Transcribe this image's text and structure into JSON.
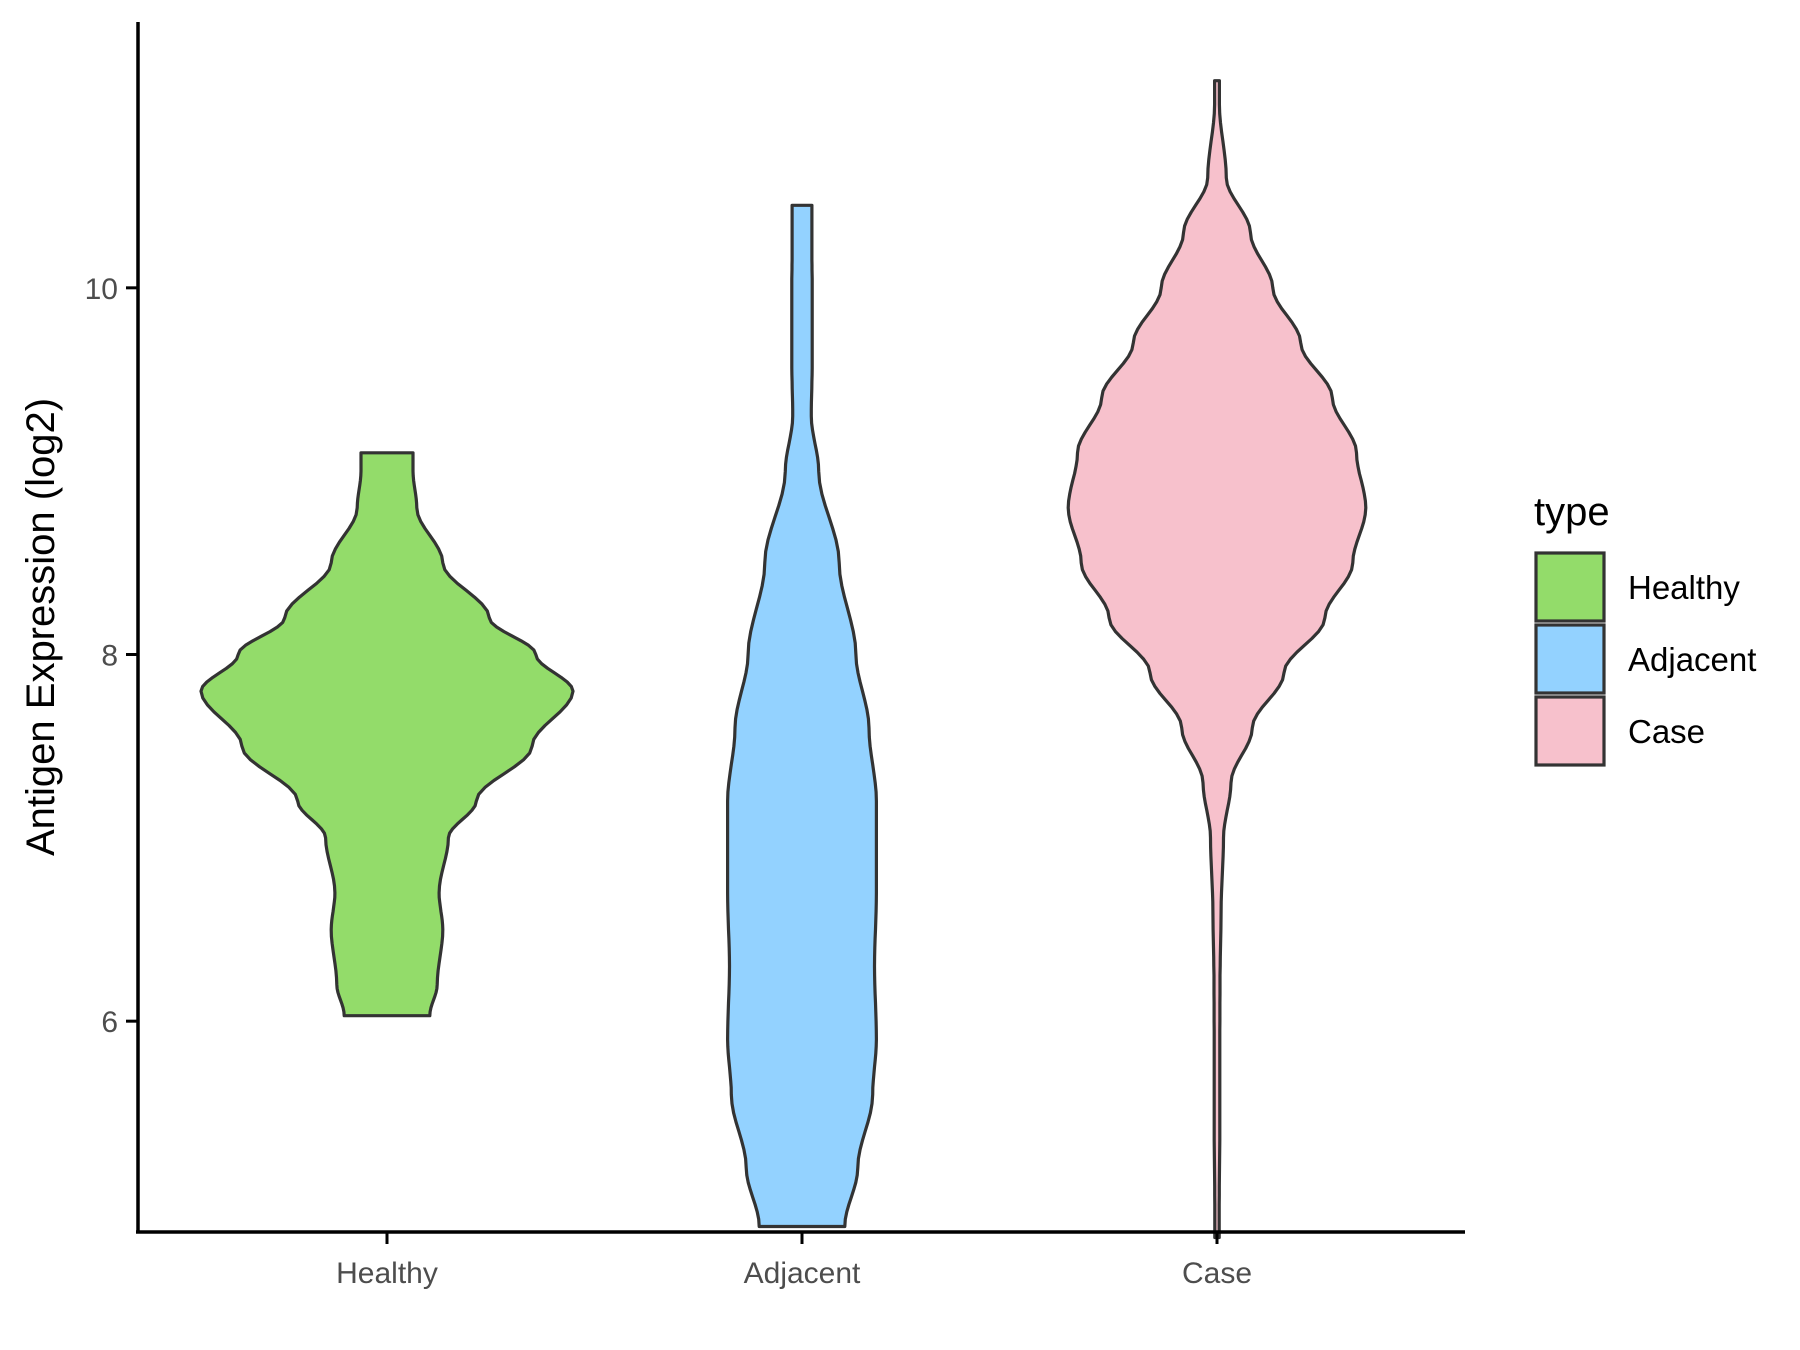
{
  "chart_data": {
    "type": "violin",
    "xlabel": "",
    "ylabel": "Antigen Expression (log2)",
    "ylim": [
      4.85,
      11.45
    ],
    "yticks": [
      6,
      8,
      10
    ],
    "categories": [
      "Healthy",
      "Adjacent",
      "Case"
    ],
    "colors": {
      "Healthy": "#93dc6a",
      "Adjacent": "#93d2ff",
      "Case": "#f7c1cc",
      "outline": "#333333"
    },
    "grid": false,
    "legend": {
      "title": "type",
      "position": "right",
      "entries": [
        "Healthy",
        "Adjacent",
        "Case"
      ]
    },
    "series": [
      {
        "name": "Healthy",
        "min": 6.03,
        "max": 9.1,
        "density": [
          [
            6.03,
            0.23
          ],
          [
            6.2,
            0.27
          ],
          [
            6.5,
            0.3
          ],
          [
            6.7,
            0.28
          ],
          [
            7.0,
            0.33
          ],
          [
            7.2,
            0.48
          ],
          [
            7.5,
            0.78
          ],
          [
            7.8,
            1.0
          ],
          [
            8.0,
            0.8
          ],
          [
            8.2,
            0.55
          ],
          [
            8.5,
            0.3
          ],
          [
            8.8,
            0.16
          ],
          [
            9.0,
            0.14
          ],
          [
            9.1,
            0.14
          ]
        ]
      },
      {
        "name": "Adjacent",
        "min": 4.88,
        "max": 10.45,
        "density": [
          [
            4.88,
            0.23
          ],
          [
            5.2,
            0.3
          ],
          [
            5.6,
            0.38
          ],
          [
            5.9,
            0.4
          ],
          [
            6.3,
            0.39
          ],
          [
            6.7,
            0.4
          ],
          [
            7.2,
            0.4
          ],
          [
            7.6,
            0.36
          ],
          [
            8.0,
            0.29
          ],
          [
            8.5,
            0.2
          ],
          [
            9.0,
            0.09
          ],
          [
            9.3,
            0.05
          ],
          [
            9.6,
            0.055
          ],
          [
            10.0,
            0.055
          ],
          [
            10.2,
            0.053
          ],
          [
            10.45,
            0.053
          ]
        ]
      },
      {
        "name": "Case",
        "min": 4.82,
        "max": 11.13,
        "density": [
          [
            4.82,
            0.012
          ],
          [
            5.0,
            0.012
          ],
          [
            5.4,
            0.015
          ],
          [
            5.8,
            0.015
          ],
          [
            6.2,
            0.016
          ],
          [
            6.6,
            0.022
          ],
          [
            7.0,
            0.035
          ],
          [
            7.3,
            0.075
          ],
          [
            7.6,
            0.19
          ],
          [
            7.9,
            0.36
          ],
          [
            8.2,
            0.58
          ],
          [
            8.5,
            0.73
          ],
          [
            8.8,
            0.8
          ],
          [
            9.1,
            0.75
          ],
          [
            9.4,
            0.62
          ],
          [
            9.7,
            0.45
          ],
          [
            10.0,
            0.3
          ],
          [
            10.3,
            0.18
          ],
          [
            10.6,
            0.05
          ],
          [
            11.0,
            0.013
          ],
          [
            11.13,
            0.013
          ]
        ]
      }
    ]
  }
}
